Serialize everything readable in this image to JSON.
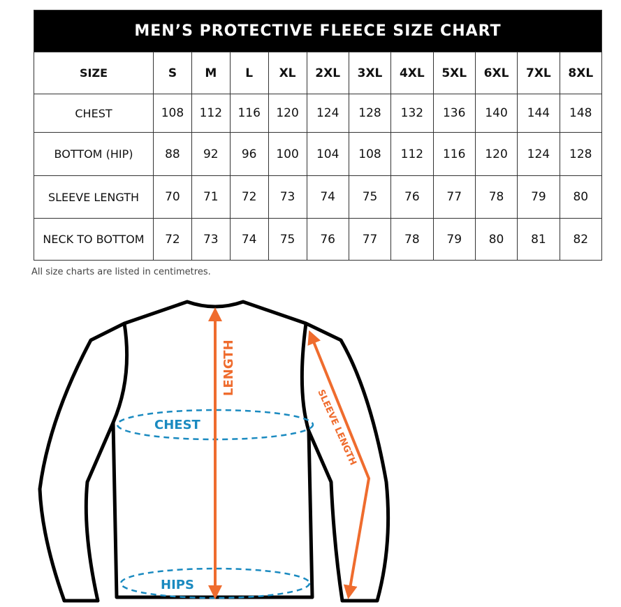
{
  "title": "MEN’S PROTECTIVE FLEECE SIZE CHART",
  "header": {
    "label": "SIZE",
    "sizes": [
      "S",
      "M",
      "L",
      "XL",
      "2XL",
      "3XL",
      "4XL",
      "5XL",
      "6XL",
      "7XL",
      "8XL"
    ]
  },
  "rows": [
    {
      "label": "CHEST",
      "values": [
        "108",
        "112",
        "116",
        "120",
        "124",
        "128",
        "132",
        "136",
        "140",
        "144",
        "148"
      ]
    },
    {
      "label": "BOTTOM (HIP)",
      "values": [
        "88",
        "92",
        "96",
        "100",
        "104",
        "108",
        "112",
        "116",
        "120",
        "124",
        "128"
      ]
    },
    {
      "label": "SLEEVE LENGTH",
      "values": [
        "70",
        "71",
        "72",
        "73",
        "74",
        "75",
        "76",
        "77",
        "78",
        "79",
        "80"
      ]
    },
    {
      "label": "NECK TO BOTTOM",
      "values": [
        "72",
        "73",
        "74",
        "75",
        "76",
        "77",
        "78",
        "79",
        "80",
        "81",
        "82"
      ]
    }
  ],
  "note": "All size charts are listed in centimetres.",
  "diagram": {
    "length_label": "LENGTH",
    "sleeve_label": "SLEEVE LENGTH",
    "chest_label": "CHEST",
    "hips_label": "HIPS",
    "colors": {
      "arrow": "#ef6c2e",
      "measure": "#1a8ac0",
      "outline": "#000000"
    }
  }
}
